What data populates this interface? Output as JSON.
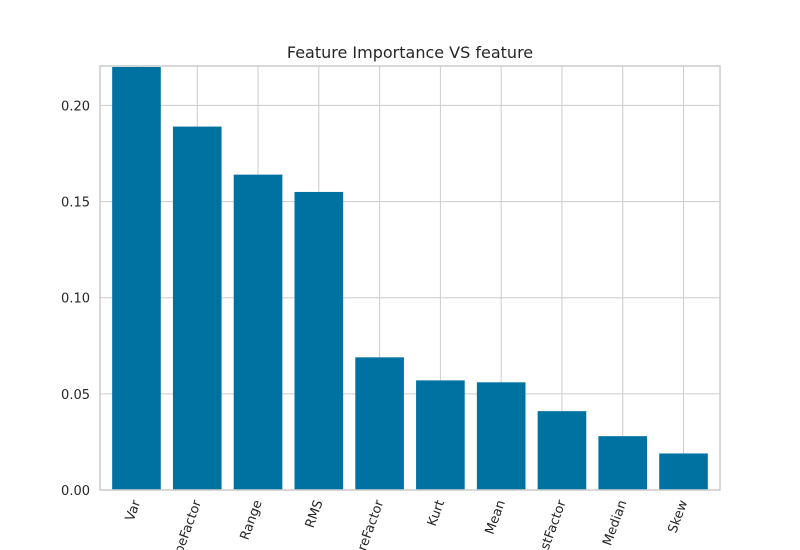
{
  "chart_data": {
    "type": "bar",
    "title": "Feature Importance VS feature",
    "xlabel": "",
    "ylabel": "",
    "categories": [
      "Var",
      "ShapeFactor",
      "Range",
      "RMS",
      "PeakToPeakFactor",
      "Kurt",
      "Mean",
      "CrestFactor",
      "Median",
      "Skew"
    ],
    "category_labels": [
      "Var",
      "peFactor",
      "Range",
      "RMS",
      "reFactor",
      "Kurt",
      "Mean",
      "stFactor",
      "Median",
      "Skew"
    ],
    "values": [
      0.22,
      0.189,
      0.164,
      0.155,
      0.069,
      0.057,
      0.056,
      0.041,
      0.028,
      0.019
    ],
    "ylim": [
      0,
      0.2205
    ],
    "yticks": [
      0.0,
      0.05,
      0.1,
      0.15,
      0.2
    ],
    "ytick_labels": [
      "0.00",
      "0.05",
      "0.10",
      "0.15",
      "0.20"
    ],
    "grid": true,
    "bar_color": "#0072a2",
    "grid_color": "#cccccc"
  }
}
